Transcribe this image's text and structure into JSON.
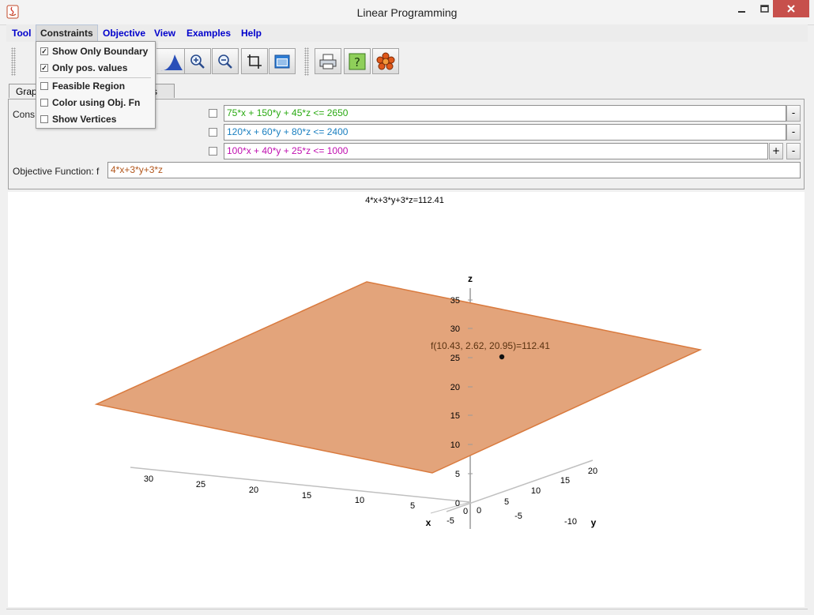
{
  "window": {
    "title": "Linear Programming"
  },
  "menu": [
    {
      "label": "Tool"
    },
    {
      "label": "Constraints"
    },
    {
      "label": "Objective"
    },
    {
      "label": "View"
    },
    {
      "label": "Examples"
    },
    {
      "label": "Help"
    }
  ],
  "constraints_menu": {
    "items": [
      {
        "label": "Show Only Boundary",
        "checked": true
      },
      {
        "label": "Only pos. values",
        "checked": true
      },
      {
        "label": "Feasible Region",
        "checked": false
      },
      {
        "label": "Color using Obj. Fn",
        "checked": false
      },
      {
        "label": "Show Vertices",
        "checked": false
      }
    ]
  },
  "toolbar": {
    "icons": [
      "mountain-icon",
      "zoom-in-icon",
      "zoom-out-icon",
      "crop-icon",
      "window-icon",
      "print-icon",
      "help-icon",
      "flower-icon"
    ]
  },
  "tabs": [
    {
      "label": "Grap",
      "active": true
    },
    {
      "label": "rs",
      "active": false
    }
  ],
  "panel": {
    "constraints_label": "Cons",
    "constraints": [
      {
        "expr": "75*x + 150*y + 45*z <= 2650",
        "color": "#2aaa12",
        "checked": false
      },
      {
        "expr": "120*x + 60*y + 80*z <= 2400",
        "color": "#1a7fc0",
        "checked": false
      },
      {
        "expr": "100*x + 40*y + 25*z <= 1000",
        "color": "#c010b0",
        "checked": false
      }
    ],
    "objective_label": "Objective Function: f",
    "objective_expr": "4*x+3*y+3*z",
    "objective_color": "#b2561b",
    "plus": "+",
    "minus": "-"
  },
  "plot": {
    "caption": "4*x+3*y+3*z=112.41",
    "point_label": "f(10.43, 2.62, 20.95)=112.41",
    "plane_color": "#e3a47b",
    "plane_edge": "#d97a3e",
    "axes": {
      "x_label": "x",
      "y_label": "y",
      "z_label": "z",
      "x_ticks": [
        "30",
        "25",
        "20",
        "15",
        "10",
        "5",
        "0",
        "-5"
      ],
      "y_ticks": [
        "20",
        "15",
        "10",
        "5",
        "0",
        "-5",
        "-10"
      ],
      "z_ticks": [
        "35",
        "30",
        "25",
        "20",
        "15",
        "10",
        "5",
        "0"
      ]
    }
  }
}
